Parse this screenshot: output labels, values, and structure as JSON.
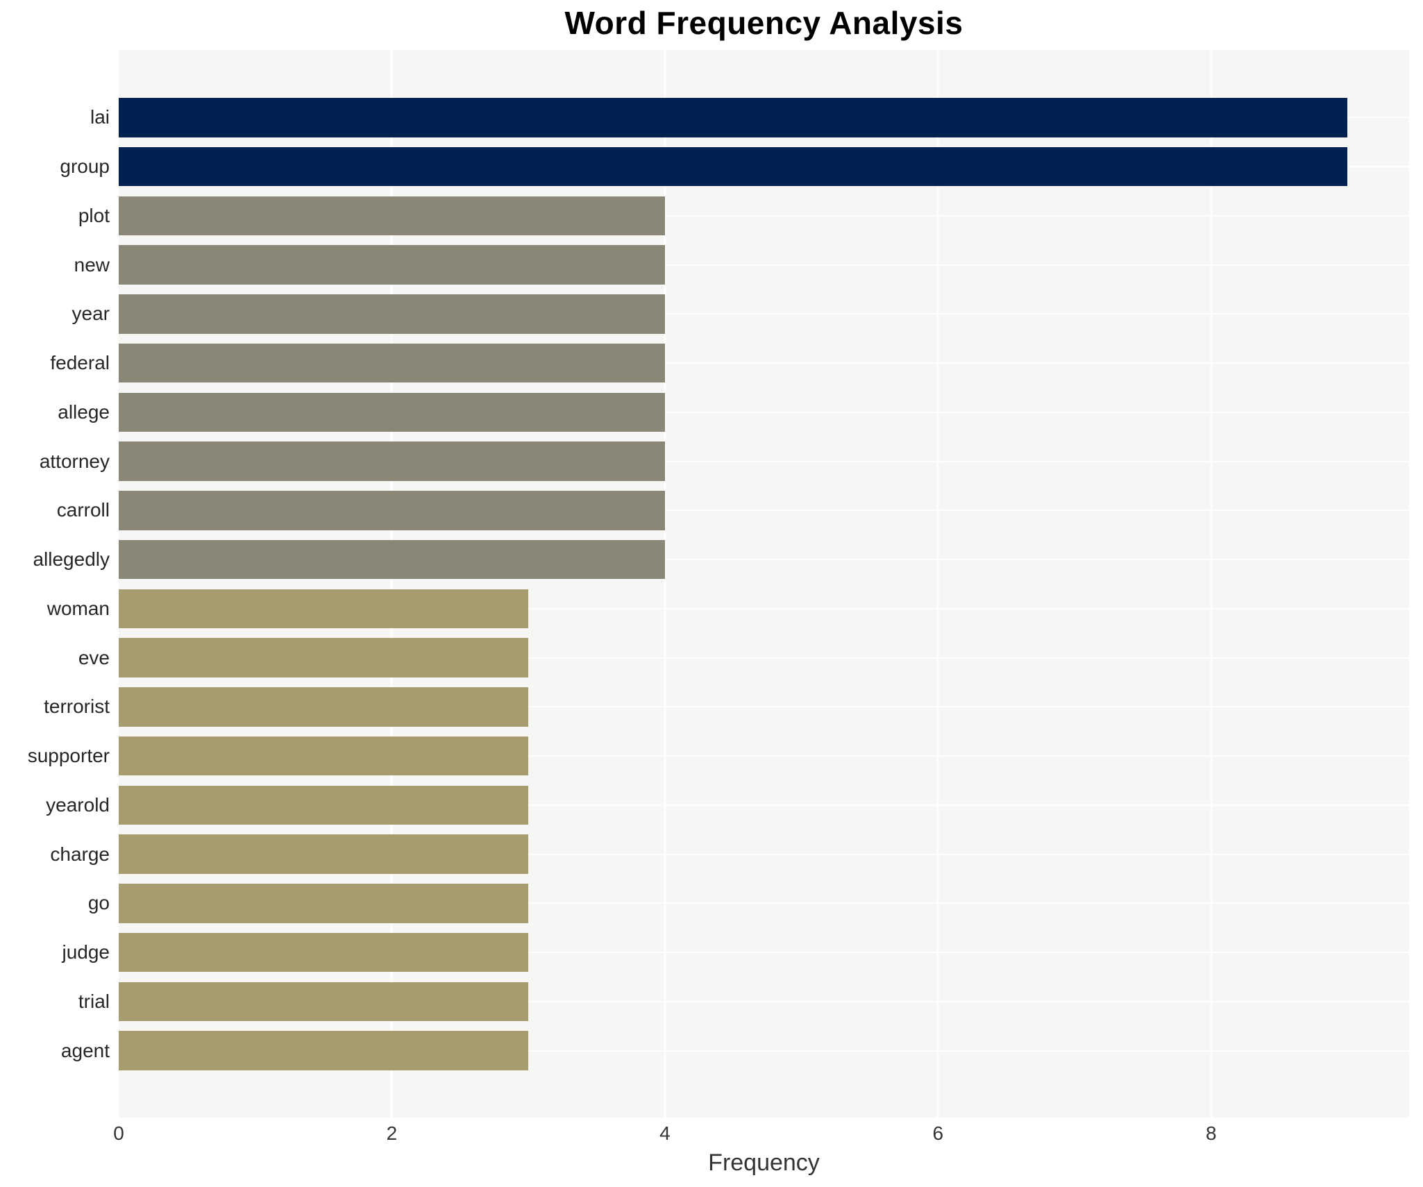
{
  "chart_data": {
    "type": "bar",
    "orientation": "horizontal",
    "title": "Word Frequency Analysis",
    "xlabel": "Frequency",
    "ylabel": "",
    "categories": [
      "lai",
      "group",
      "plot",
      "new",
      "year",
      "federal",
      "allege",
      "attorney",
      "carroll",
      "allegedly",
      "woman",
      "eve",
      "terrorist",
      "supporter",
      "yearold",
      "charge",
      "go",
      "judge",
      "trial",
      "agent"
    ],
    "values": [
      9,
      9,
      4,
      4,
      4,
      4,
      4,
      4,
      4,
      4,
      3,
      3,
      3,
      3,
      3,
      3,
      3,
      3,
      3,
      3
    ],
    "bar_colors": [
      "#032150",
      "#032150",
      "#8a8777",
      "#8a8777",
      "#8a8777",
      "#8a8777",
      "#8a8777",
      "#8a8777",
      "#8a8777",
      "#8a8777",
      "#a79c6d",
      "#a79c6d",
      "#a79c6d",
      "#a79c6d",
      "#a79c6d",
      "#a79c6d",
      "#a79c6d",
      "#a79c6d",
      "#a79c6d",
      "#a79c6d"
    ],
    "xlim": [
      0,
      9.45
    ],
    "xticks": [
      0,
      2,
      4,
      6,
      8
    ],
    "grid": true,
    "legend": false
  },
  "colors": {
    "navy": "#032150",
    "olive_gray": "#8a8777",
    "khaki": "#a79c6d",
    "plot_background": "#f6f6f5",
    "page_background": "#ffffff",
    "gridline": "#ffffff",
    "text": "#262626"
  }
}
